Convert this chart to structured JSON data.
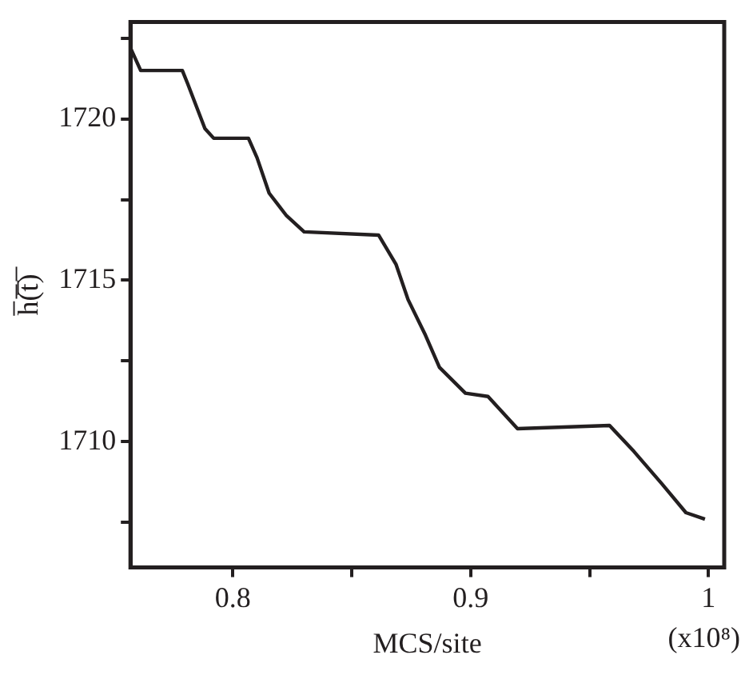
{
  "chart_data": {
    "type": "line",
    "xlabel": "MCS/site",
    "ylabel": "h̅(̅t̅)̅",
    "annotations": [
      "(x10⁸)"
    ],
    "x": [
      0.757,
      0.7613,
      0.7788,
      0.781,
      0.7883,
      0.792,
      0.8066,
      0.8102,
      0.8153,
      0.8226,
      0.83,
      0.8613,
      0.8686,
      0.8737,
      0.881,
      0.8869,
      0.8978,
      0.9073,
      0.9197,
      0.9584,
      0.9686,
      0.9803,
      0.9905,
      0.9985
    ],
    "series": [
      {
        "color": "#231f20",
        "values": [
          1722.2,
          1721.5,
          1721.5,
          1721.1,
          1719.7,
          1719.4,
          1719.4,
          1718.8,
          1717.7,
          1717.0,
          1716.5,
          1716.4,
          1715.5,
          1714.4,
          1713.3,
          1712.3,
          1711.5,
          1711.4,
          1710.4,
          1710.5,
          1709.7,
          1708.7,
          1707.8,
          1707.6
        ]
      }
    ],
    "xlim": [
      0.757,
      1.0066
    ],
    "ylim": [
      1706.1,
      1723
    ],
    "xticks": [
      0.8,
      {
        "value": 0.85,
        "label": null
      },
      0.9,
      {
        "value": 0.95,
        "label": null
      },
      {
        "value": 1,
        "label": "1"
      }
    ],
    "yticks": [
      {
        "value": 1707.5,
        "label": null
      },
      1710,
      {
        "value": 1712.5,
        "label": null
      },
      1715,
      {
        "value": 1717.5,
        "label": null
      },
      1720,
      {
        "value": 1722.5,
        "label": null
      }
    ],
    "grid": false,
    "legend": false,
    "marker": "none",
    "line_style": "solid"
  }
}
